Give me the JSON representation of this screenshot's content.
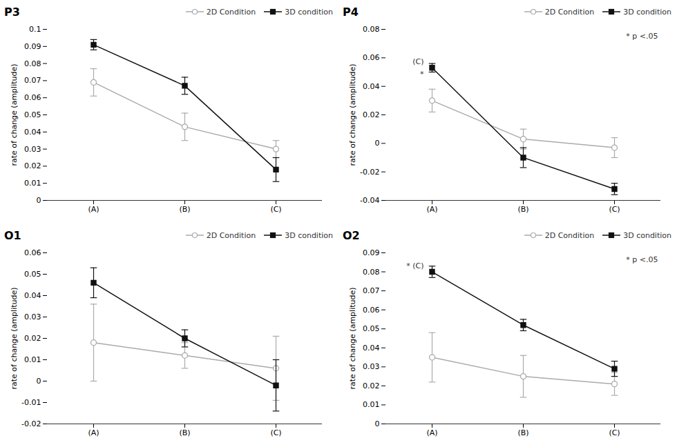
{
  "chart_data": [
    {
      "type": "line",
      "title": "P3",
      "categories": [
        "(A)",
        "(B)",
        "(C)"
      ],
      "series": [
        {
          "name": "2D Condition",
          "color": "#aaaaaa",
          "marker": "open_circle",
          "values": [
            0.069,
            0.043,
            0.03
          ],
          "errors": [
            0.008,
            0.008,
            0.005
          ]
        },
        {
          "name": "3D condition",
          "color": "#111111",
          "marker": "square",
          "values": [
            0.091,
            0.067,
            0.018
          ],
          "errors": [
            0.003,
            0.005,
            0.007
          ]
        }
      ],
      "ylabel": "rate of change (amplitude)",
      "ylim": [
        0,
        0.1
      ],
      "yticks": [
        0,
        0.01,
        0.02,
        0.03,
        0.04,
        0.05,
        0.06,
        0.07,
        0.08,
        0.09,
        0.1
      ],
      "grid": false,
      "legend": "upper right",
      "annotations": []
    },
    {
      "type": "line",
      "title": "P4",
      "categories": [
        "(A)",
        "(B)",
        "(C)"
      ],
      "series": [
        {
          "name": "2D Condition",
          "color": "#aaaaaa",
          "marker": "open_circle",
          "values": [
            0.03,
            0.003,
            -0.003
          ],
          "errors": [
            0.008,
            0.007,
            0.007
          ]
        },
        {
          "name": "3D condition",
          "color": "#111111",
          "marker": "square",
          "values": [
            0.053,
            -0.01,
            -0.032
          ],
          "errors": [
            0.003,
            0.007,
            0.004
          ]
        }
      ],
      "ylabel": "rate of change (amplitude)",
      "ylim": [
        -0.04,
        0.08
      ],
      "yticks": [
        -0.04,
        -0.02,
        0,
        0.02,
        0.04,
        0.06,
        0.08
      ],
      "grid": false,
      "legend": "upper right",
      "annotations": [
        {
          "text": "(C)",
          "x": "(A)",
          "y": 0.053
        },
        {
          "text": "*",
          "x": "(A)",
          "y": 0.053
        },
        {
          "text": "* p <.05"
        }
      ]
    },
    {
      "type": "line",
      "title": "O1",
      "categories": [
        "(A)",
        "(B)",
        "(C)"
      ],
      "series": [
        {
          "name": "2D Condition",
          "color": "#aaaaaa",
          "marker": "open_circle",
          "values": [
            0.018,
            0.012,
            0.006
          ],
          "errors": [
            0.018,
            0.006,
            0.015
          ]
        },
        {
          "name": "3D condition",
          "color": "#111111",
          "marker": "square",
          "values": [
            0.046,
            0.02,
            -0.002
          ],
          "errors": [
            0.007,
            0.004,
            0.012
          ]
        }
      ],
      "ylabel": "rate of change (amplitude)",
      "ylim": [
        -0.02,
        0.06
      ],
      "yticks": [
        -0.02,
        -0.01,
        0,
        0.01,
        0.02,
        0.03,
        0.04,
        0.05,
        0.06
      ],
      "grid": false,
      "legend": "upper right",
      "annotations": []
    },
    {
      "type": "line",
      "title": "O2",
      "categories": [
        "(A)",
        "(B)",
        "(C)"
      ],
      "series": [
        {
          "name": "2D Condition",
          "color": "#aaaaaa",
          "marker": "open_circle",
          "values": [
            0.035,
            0.025,
            0.021
          ],
          "errors": [
            0.013,
            0.011,
            0.006
          ]
        },
        {
          "name": "3D condition",
          "color": "#111111",
          "marker": "square",
          "values": [
            0.08,
            0.052,
            0.029
          ],
          "errors": [
            0.003,
            0.003,
            0.004
          ]
        }
      ],
      "ylabel": "rate of change (amplitude)",
      "ylim": [
        0,
        0.09
      ],
      "yticks": [
        0,
        0.01,
        0.02,
        0.03,
        0.04,
        0.05,
        0.06,
        0.07,
        0.08,
        0.09
      ],
      "grid": false,
      "legend": "upper right",
      "annotations": [
        {
          "text": "* (C)",
          "x": "(A)",
          "y": 0.08
        },
        {
          "text": "* p <.05"
        }
      ]
    }
  ]
}
